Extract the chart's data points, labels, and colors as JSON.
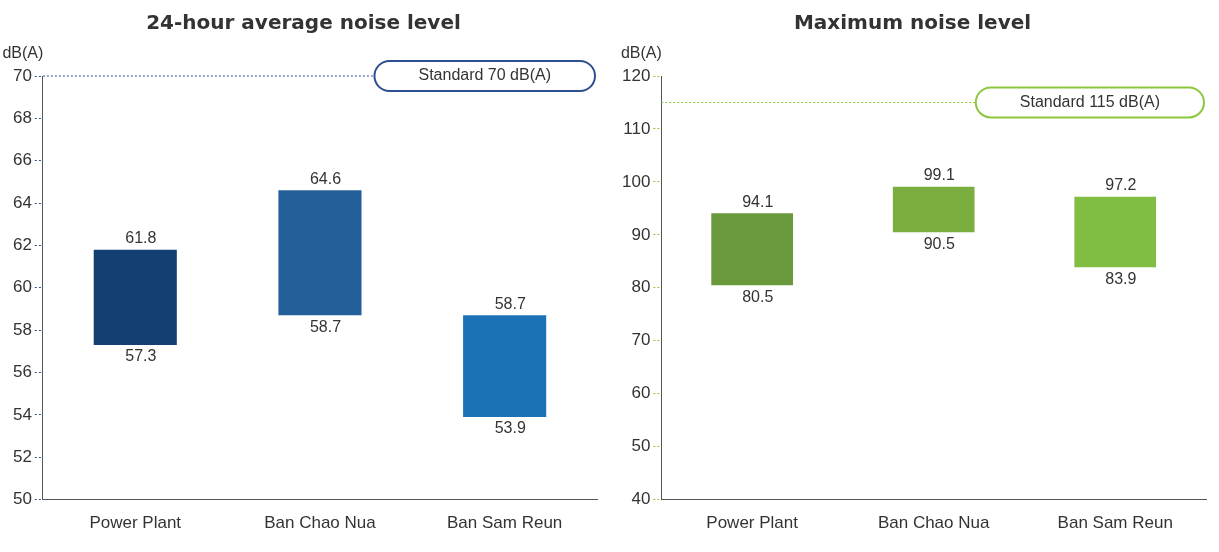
{
  "chart_data": [
    {
      "type": "bar",
      "title": "24-hour average noise level",
      "ylabel": "dB(A)",
      "categories": [
        "Power Plant",
        "Ban Chao Nua",
        "Ban Sam Reun"
      ],
      "base": [
        57.3,
        58.7,
        53.9
      ],
      "values": [
        4.5,
        5.9,
        4.8
      ],
      "colors": [
        "#143f73",
        "#245f9a",
        "#1a72b5"
      ],
      "ylim": [
        50,
        70
      ],
      "yticks": [
        50,
        52,
        54,
        56,
        58,
        60,
        62,
        64,
        66,
        68,
        70
      ],
      "grid": false,
      "legend": false,
      "ref_lines": [
        {
          "axis": "y",
          "value": 70,
          "label": "Standard 70 dB(A)",
          "color": "#2e4f8f",
          "line_style": "dotted"
        }
      ],
      "annotations": [
        {
          "text": "61.8",
          "x": "Power Plant",
          "y": 61.8
        },
        {
          "text": "57.3",
          "x": "Power Plant",
          "y": 57.3
        },
        {
          "text": "64.6",
          "x": "Ban Chao Nua",
          "y": 64.6
        },
        {
          "text": "58.7",
          "x": "Ban Chao Nua",
          "y": 58.7
        },
        {
          "text": "58.7",
          "x": "Ban Sam Reun",
          "y": 58.7
        },
        {
          "text": "53.9",
          "x": "Ban Sam Reun",
          "y": 53.9
        }
      ]
    },
    {
      "type": "bar",
      "title": "Maximum noise level",
      "ylabel": "dB(A)",
      "categories": [
        "Power Plant",
        "Ban Chao Nua",
        "Ban Sam Reun"
      ],
      "base": [
        80.5,
        90.5,
        83.9
      ],
      "values": [
        13.6,
        8.6,
        13.3
      ],
      "colors": [
        "#6a9a3c",
        "#7aae3e",
        "#80bd42"
      ],
      "ylim": [
        40,
        120
      ],
      "yticks": [
        40,
        50,
        60,
        70,
        80,
        90,
        100,
        110,
        120
      ],
      "grid": false,
      "legend": false,
      "ref_lines": [
        {
          "axis": "y",
          "value": 115,
          "label": "Standard 115 dB(A)",
          "color": "#8cc63f",
          "line_style": "dotted"
        }
      ],
      "annotations": [
        {
          "text": "94.1",
          "x": "Power Plant",
          "y": 94.1
        },
        {
          "text": "80.5",
          "x": "Power Plant",
          "y": 80.5
        },
        {
          "text": "99.1",
          "x": "Ban Chao Nua",
          "y": 99.1
        },
        {
          "text": "90.5",
          "x": "Ban Chao Nua",
          "y": 90.5
        },
        {
          "text": "97.2",
          "x": "Ban Sam Reun",
          "y": 97.2
        },
        {
          "text": "83.9",
          "x": "Ban Sam Reun",
          "y": 83.9
        }
      ]
    }
  ]
}
